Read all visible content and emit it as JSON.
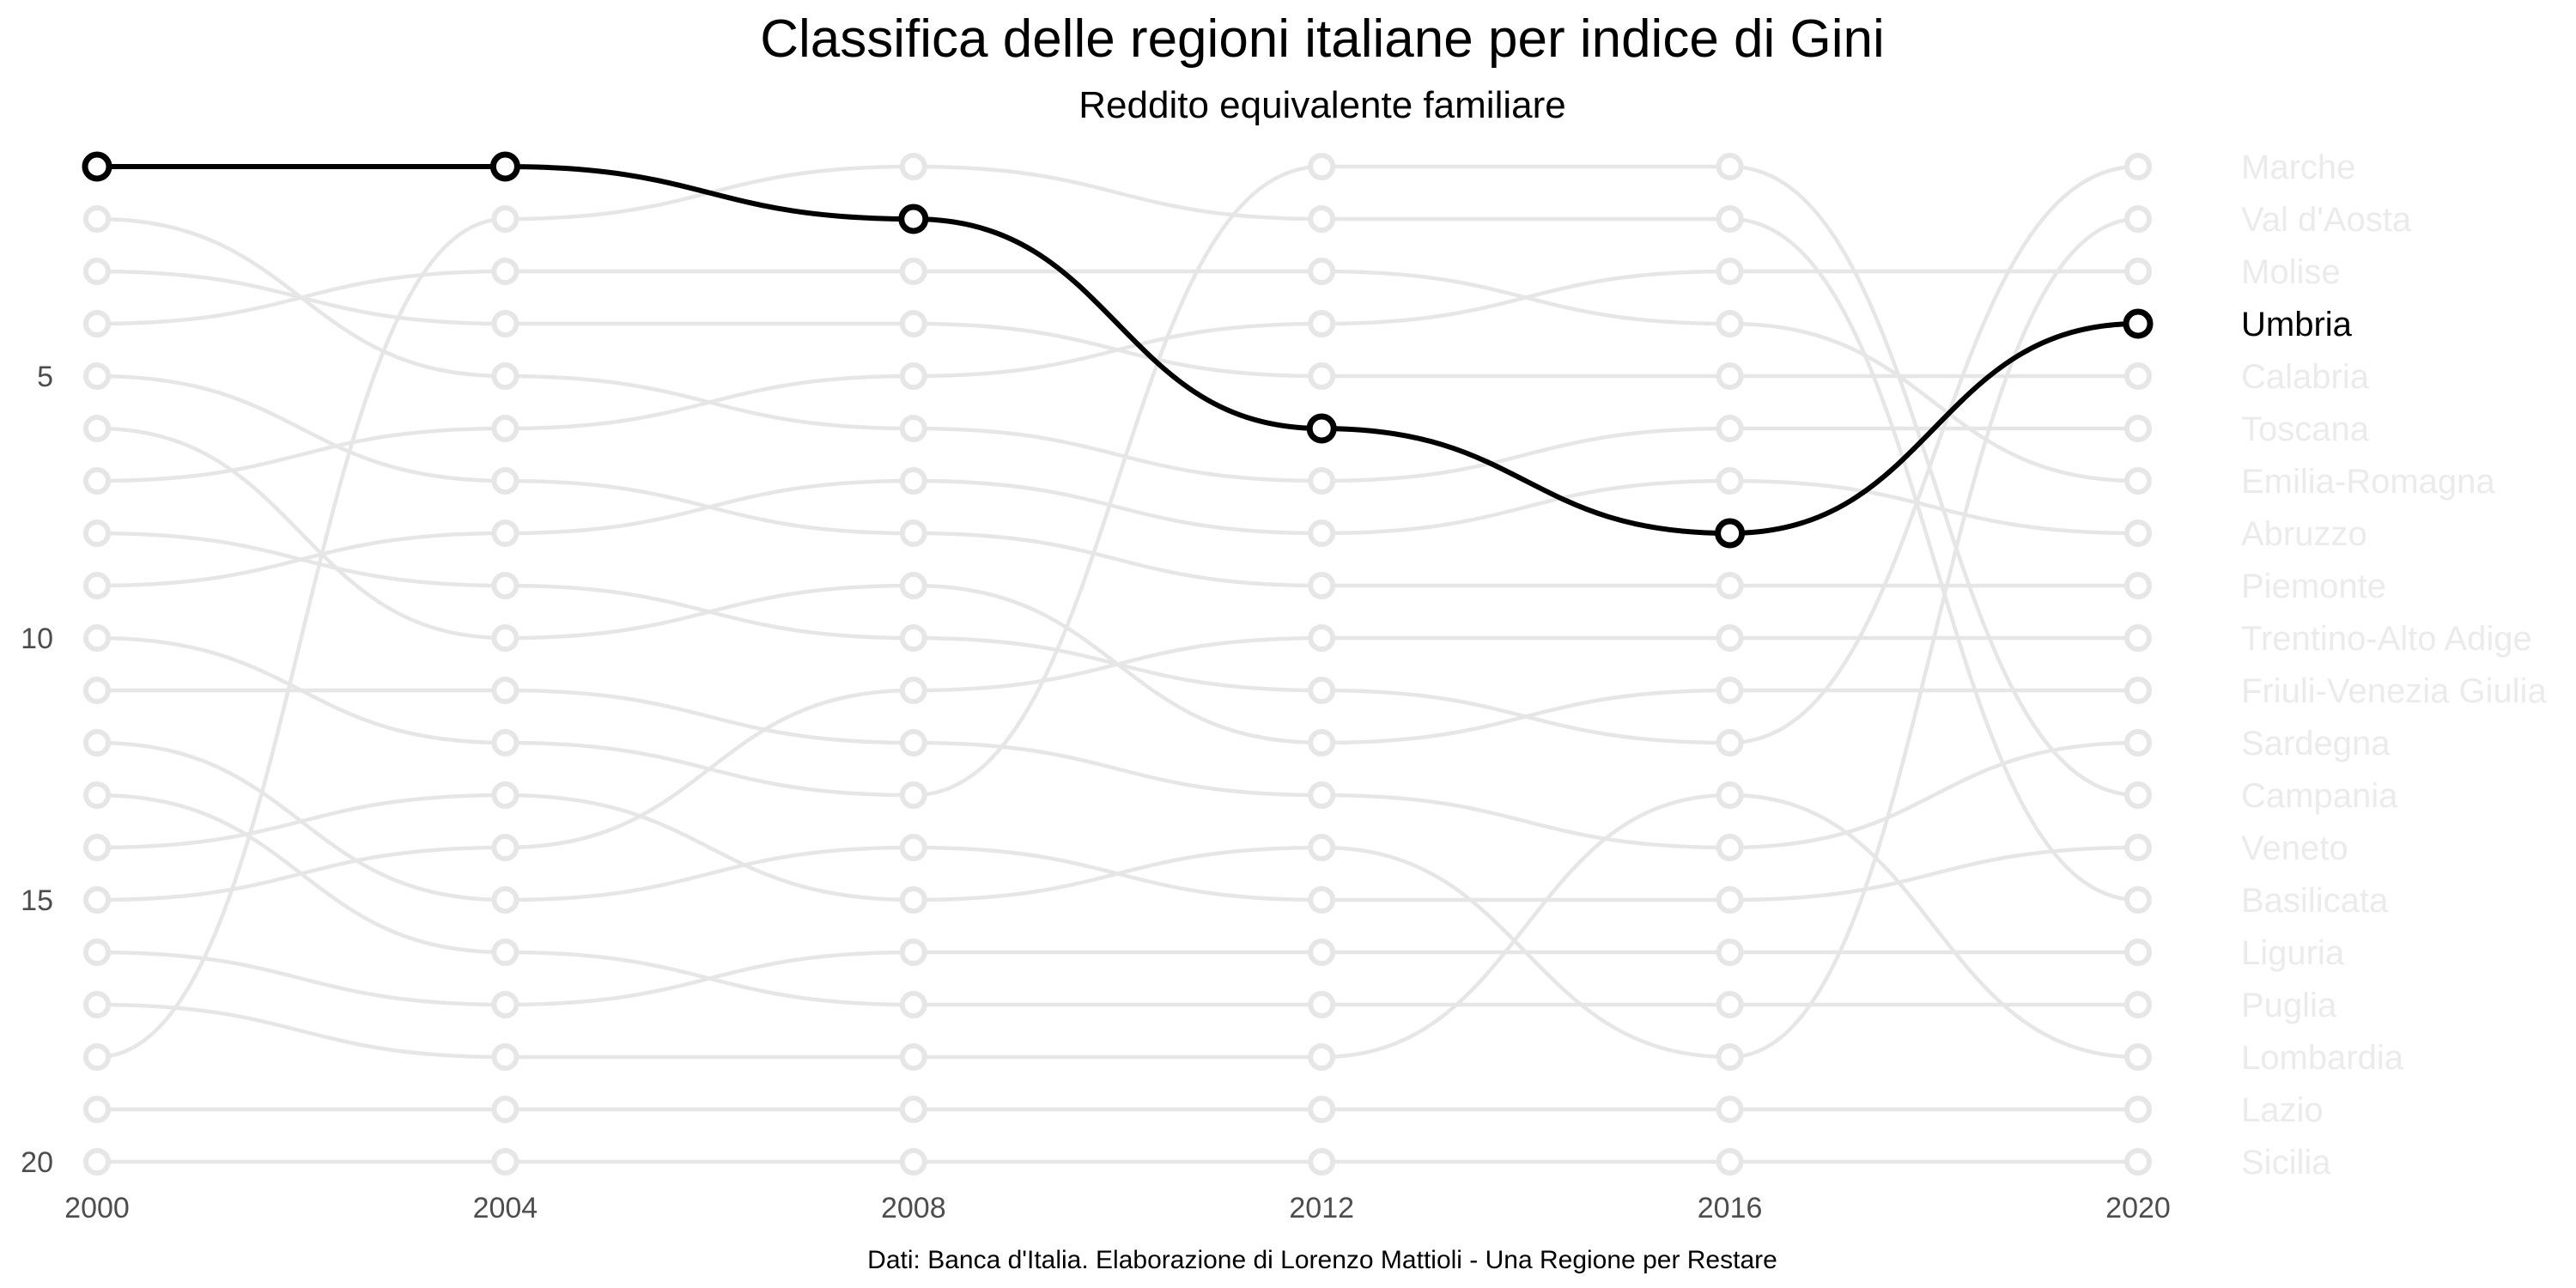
{
  "chart_data": {
    "type": "line",
    "subtype": "bump",
    "title": "Classifica delle regioni italiane per indice di Gini",
    "subtitle": "Reddito equivalente familiare",
    "caption": "Dati: Banca d'Italia. Elaborazione di Lorenzo Mattioli - Una Regione per Restare",
    "x": [
      2000,
      2004,
      2008,
      2012,
      2016,
      2020
    ],
    "y_ticks": [
      5,
      10,
      15,
      20
    ],
    "ylim": [
      1,
      20
    ],
    "y_reversed": true,
    "highlight": "Umbria",
    "colors": {
      "highlight": "#000000",
      "background": "#e6e6e6",
      "label_muted": "#ebebeb",
      "tick": "#4d4d4d"
    },
    "series": [
      {
        "name": "Umbria",
        "values": [
          1,
          1,
          2,
          6,
          8,
          4
        ]
      },
      {
        "name": "Marche",
        "values": [
          8,
          9,
          10,
          11,
          12,
          1
        ]
      },
      {
        "name": "Val d'Aosta",
        "values": [
          14,
          13,
          15,
          14,
          18,
          2
        ]
      },
      {
        "name": "Molise",
        "values": [
          7,
          6,
          5,
          4,
          3,
          3
        ]
      },
      {
        "name": "Calabria",
        "values": [
          3,
          4,
          4,
          5,
          5,
          5
        ]
      },
      {
        "name": "Toscana",
        "values": [
          2,
          5,
          6,
          7,
          6,
          6
        ]
      },
      {
        "name": "Emilia-Romagna",
        "values": [
          4,
          3,
          3,
          3,
          4,
          7
        ]
      },
      {
        "name": "Abruzzo",
        "values": [
          9,
          8,
          7,
          8,
          7,
          8
        ]
      },
      {
        "name": "Piemonte",
        "values": [
          5,
          7,
          8,
          9,
          9,
          9
        ]
      },
      {
        "name": "Trentino-Alto Adige",
        "values": [
          15,
          14,
          11,
          10,
          10,
          10
        ]
      },
      {
        "name": "Friuli-Venezia Giulia",
        "values": [
          6,
          10,
          9,
          12,
          11,
          11
        ]
      },
      {
        "name": "Sardegna",
        "values": [
          11,
          11,
          12,
          13,
          14,
          12
        ]
      },
      {
        "name": "Campania",
        "values": [
          10,
          12,
          13,
          1,
          1,
          13
        ]
      },
      {
        "name": "Veneto",
        "values": [
          12,
          15,
          14,
          15,
          15,
          14
        ]
      },
      {
        "name": "Basilicata",
        "values": [
          18,
          2,
          1,
          2,
          2,
          15
        ]
      },
      {
        "name": "Liguria",
        "values": [
          16,
          17,
          16,
          16,
          16,
          16
        ]
      },
      {
        "name": "Puglia",
        "values": [
          13,
          16,
          17,
          17,
          17,
          17
        ]
      },
      {
        "name": "Lombardia",
        "values": [
          17,
          18,
          18,
          18,
          13,
          18
        ]
      },
      {
        "name": "Lazio",
        "values": [
          19,
          19,
          19,
          19,
          19,
          19
        ]
      },
      {
        "name": "Sicilia",
        "values": [
          20,
          20,
          20,
          20,
          20,
          20
        ]
      }
    ]
  }
}
